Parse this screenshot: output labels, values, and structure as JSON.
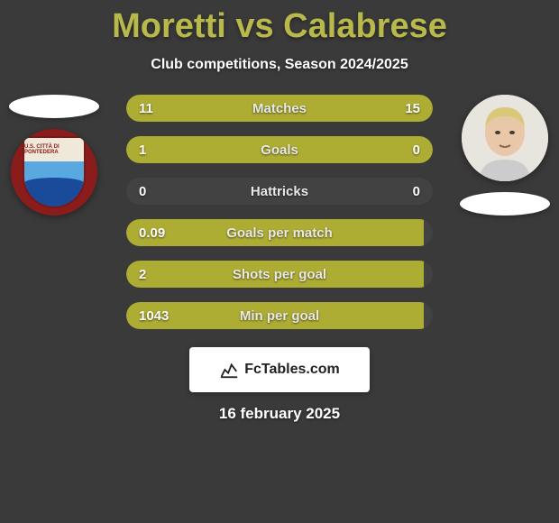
{
  "title": "Moretti vs Calabrese",
  "title_color": "#b8b94a",
  "subtitle": "Club competitions, Season 2024/2025",
  "background_color": "#3a3a3a",
  "bar_track_color": "#424242",
  "bar_fill_color": "#aead33",
  "text_color": "#ffffff",
  "left_side": {
    "ellipse_color": "#ffffff",
    "crest_bg": "#8a1c1c",
    "crest_top_color": "#f0e8d8",
    "crest_top_text": "U.S. CITTÀ DI PONTEDERA",
    "crest_top_text_color": "#8a1c1c",
    "crest_mid_color": "#5aa8e0",
    "crest_wave_color": "#1a4a9a",
    "crest_bot_color": "#1a4a9a"
  },
  "right_side": {
    "avatar_bg": "#e8e4de",
    "hair_color": "#d8c878",
    "skin_color": "#e8c8a8",
    "ellipse_color": "#ffffff"
  },
  "stats": [
    {
      "label": "Matches",
      "left_val": "11",
      "right_val": "15",
      "left_pct": 42,
      "right_pct": 58
    },
    {
      "label": "Goals",
      "left_val": "1",
      "right_val": "0",
      "left_pct": 78,
      "right_pct": 22
    },
    {
      "label": "Hattricks",
      "left_val": "0",
      "right_val": "0",
      "left_pct": 0,
      "right_pct": 0
    },
    {
      "label": "Goals per match",
      "left_val": "0.09",
      "right_val": "",
      "left_pct": 97,
      "right_pct": 0
    },
    {
      "label": "Shots per goal",
      "left_val": "2",
      "right_val": "",
      "left_pct": 97,
      "right_pct": 0
    },
    {
      "label": "Min per goal",
      "left_val": "1043",
      "right_val": "",
      "left_pct": 97,
      "right_pct": 0
    }
  ],
  "branding": {
    "text": "FcTables.com",
    "bg_color": "#ffffff",
    "text_color": "#222222",
    "icon_color": "#222222"
  },
  "date": "16 february 2025"
}
